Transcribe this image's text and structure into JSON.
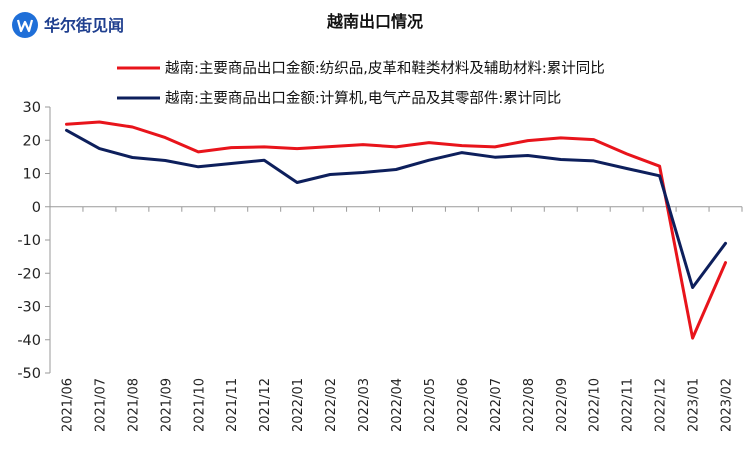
{
  "brand": {
    "name": "华尔街见闻",
    "logo_icon": "wallstreetcn-logo-icon"
  },
  "colors": {
    "series_1": "#e8141b",
    "series_2": "#0d1f5c",
    "axis": "#9a9a9a",
    "brand": "#1f6fd8"
  },
  "chart_data": {
    "type": "line",
    "title": "越南出口情况",
    "xlabel": "",
    "ylabel": "",
    "grid": false,
    "legend_position": "top",
    "ylim": [
      -50,
      30
    ],
    "yticks": [
      30,
      20,
      10,
      0,
      -10,
      -20,
      -30,
      -40,
      -50
    ],
    "categories": [
      "2021/06",
      "2021/07",
      "2021/08",
      "2021/09",
      "2021/10",
      "2021/11",
      "2021/12",
      "2022/01",
      "2022/02",
      "2022/03",
      "2022/04",
      "2022/05",
      "2022/06",
      "2022/07",
      "2022/08",
      "2022/09",
      "2022/10",
      "2022/11",
      "2022/12",
      "2023/01",
      "2023/02"
    ],
    "series": [
      {
        "name": "越南:主要商品出口金额:纺织品,皮革和鞋类材料及辅助材料:累计同比",
        "color": "#e8141b",
        "values": [
          24.8,
          25.5,
          24.0,
          20.8,
          16.5,
          17.8,
          18.0,
          17.5,
          18.1,
          18.7,
          18.0,
          19.3,
          18.4,
          18.0,
          19.9,
          20.7,
          20.2,
          15.9,
          12.2,
          -39.5,
          -16.8
        ]
      },
      {
        "name": "越南:主要商品出口金额:计算机,电气产品及其零部件:累计同比",
        "color": "#0d1f5c",
        "values": [
          23.0,
          17.5,
          14.8,
          13.9,
          12.0,
          13.0,
          14.0,
          7.3,
          9.7,
          10.3,
          11.2,
          14.0,
          16.3,
          14.9,
          15.4,
          14.2,
          13.8,
          11.5,
          9.3,
          -24.3,
          -11.0
        ]
      }
    ]
  }
}
